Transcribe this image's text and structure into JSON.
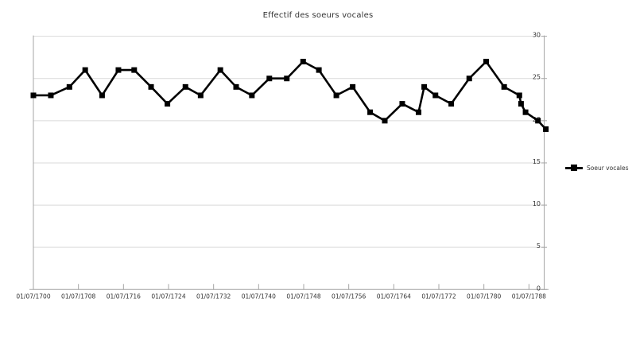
{
  "chart_data": {
    "type": "line",
    "title": "Effectif des soeurs vocales",
    "series": [
      {
        "name": "Soeur vocales",
        "x": [
          1700.0,
          1703.1,
          1706.4,
          1709.2,
          1712.2,
          1715.1,
          1717.9,
          1720.9,
          1723.8,
          1727.0,
          1729.7,
          1733.2,
          1736.0,
          1738.8,
          1741.9,
          1745.0,
          1747.9,
          1750.7,
          1753.8,
          1756.7,
          1759.8,
          1762.4,
          1765.5,
          1768.4,
          1769.4,
          1771.4,
          1774.2,
          1777.4,
          1780.4,
          1783.6,
          1786.3,
          1786.6,
          1787.4,
          1789.6,
          1791.0
        ],
        "values": [
          23,
          23,
          24,
          26,
          23,
          26,
          26,
          24,
          22,
          24,
          23,
          26,
          24,
          23,
          25,
          25,
          27,
          26,
          23,
          24,
          21,
          20,
          22,
          21,
          24,
          23,
          22,
          25,
          27,
          24,
          23,
          22,
          21,
          20,
          19
        ]
      }
    ],
    "x_tick_labels": [
      "01/07/1700",
      "01/07/1708",
      "01/07/1716",
      "01/07/1724",
      "01/07/1732",
      "01/07/1740",
      "01/07/1748",
      "01/07/1756",
      "01/07/1764",
      "01/07/1772",
      "01/07/1780",
      "01/07/1788"
    ],
    "y_ticks": [
      0,
      5,
      10,
      15,
      20,
      25,
      30
    ],
    "ylim": [
      0,
      30
    ],
    "xlim": [
      1700,
      1790.7
    ],
    "grid": "horizontal",
    "legend_position": "right",
    "y_axis_side": "right",
    "colors": {
      "series": "#000000",
      "grid": "#d9d9d9",
      "axis": "#a6a6a6",
      "text": "#333333"
    }
  }
}
